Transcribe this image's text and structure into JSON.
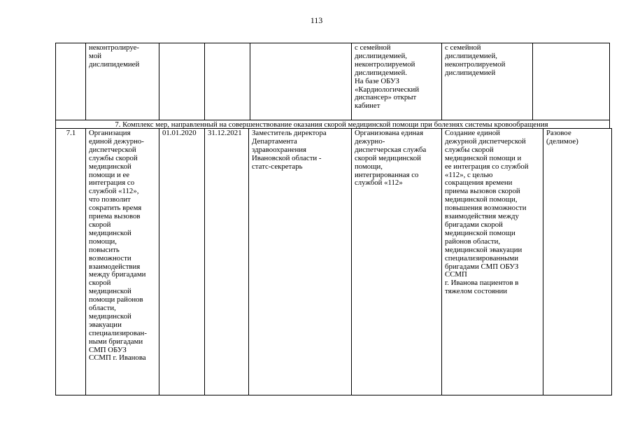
{
  "page_number": "113",
  "table": {
    "prev_row": {
      "num": "",
      "name": "неконтролируе-\nмой\nдислипидемией",
      "start": "",
      "end": "",
      "responsible": "",
      "result": "с семейной\nдислипидемией,\nнеконтролируемой\nдислипидемией.\nНа базе ОБУЗ\n«Кардиологический\nдиспансер» открыт\nкабинет",
      "expected": "с семейной\nдислипидемией,\nнеконтролируемой\nдислипидемией",
      "type": ""
    },
    "section_header": "7. Комплекс мер, направленный на совершенствование оказания скорой медицинской помощи при болезнях системы кровообращения",
    "row": {
      "num": "7.1",
      "name": "Организация\nединой дежурно-\nдиспетчерской\nслужбы скорой\nмедицинской\nпомощи и ее\nинтеграция со\nслужбой «112»,\nчто позволит\nсократить время\nприема вызовов\nскорой\nмедицинской\nпомощи,\nповысить\nвозможности\nвзаимодействия\nмежду бригадами\nскорой\nмедицинской\nпомощи районов\nобласти,\nмедицинской\nэвакуации\nспециализирован-\nными бригадами\nСМП ОБУЗ\nССМП г. Иванова",
      "start": "01.01.2020",
      "end": "31.12.2021",
      "responsible": "Заместитель директора\nДепартамента\nздравоохранения\nИвановской области -\nстатс-секретарь",
      "result": "Организована единая\nдежурно-\nдиспетчерская служба\nскорой медицинской\nпомощи,\nинтегрированная со\nслужбой «112»",
      "expected": "Создание единой\nдежурной диспетчерской\nслужбы скорой\nмедицинской помощи и\nее интеграция со службой\n«112», с целью\nсокращения времени\nприема вызовов скорой\nмедицинской помощи,\nповышения возможности\nвзаимодействия между\nбригадами скорой\nмедицинской помощи\nрайонов области,\nмедицинской эвакуации\nспециализированными\nбригадами СМП ОБУЗ\nССМП\nг. Иванова пациентов в\nтяжелом состоянии",
      "type": "Разовое\n(делимое)"
    }
  }
}
